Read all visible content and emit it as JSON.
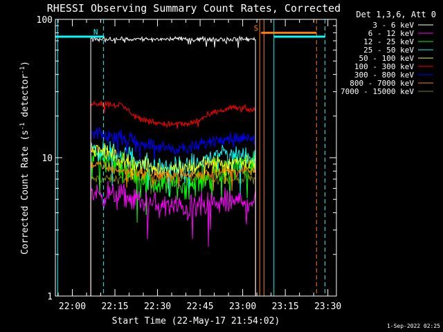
{
  "chart_data": {
    "type": "line",
    "title": "RHESSI Observing Summary Count Rates, Corrected",
    "xlabel": "Start Time (22-May-17 21:54:02)",
    "ylabel_main": "Corrected Count Rate (s",
    "ylabel_sup1": "-1",
    "ylabel_mid": " detector",
    "ylabel_sup2": "-1",
    "ylabel_end": ")",
    "y_scale": "log",
    "ylim": [
      1,
      100
    ],
    "xlim": [
      "21:54:02",
      "23:33:00"
    ],
    "x_ticks": [
      "22:00",
      "22:15",
      "22:30",
      "22:45",
      "23:00",
      "23:15",
      "23:30"
    ],
    "y_ticks": [
      "1",
      "10",
      "100"
    ],
    "data_start": "22:06:30",
    "data_end": "23:04:30",
    "legend": {
      "title": "Det 1,3,6, Att 0",
      "position": "right"
    },
    "series": [
      {
        "name": "3 - 6 keV",
        "color": "#ffffff",
        "level": 72,
        "noise": 0.025
      },
      {
        "name": "6 - 12 keV",
        "color": "#ff00ff",
        "level": 4.7,
        "noise": 0.14,
        "profile": [
          [
            0,
            5.6
          ],
          [
            0.2,
            5.2
          ],
          [
            0.4,
            4.5
          ],
          [
            0.6,
            4.3
          ],
          [
            0.8,
            4.7
          ],
          [
            1,
            4.9
          ]
        ]
      },
      {
        "name": "12 - 25 keV",
        "color": "#00ff00",
        "level": 7.5,
        "noise": 0.14,
        "profile": [
          [
            0,
            10.5
          ],
          [
            0.2,
            8.5
          ],
          [
            0.4,
            6.3
          ],
          [
            0.6,
            6.3
          ],
          [
            0.8,
            8.0
          ],
          [
            1,
            9.0
          ]
        ]
      },
      {
        "name": "25 - 50 keV",
        "color": "#00ffff",
        "level": 8.5,
        "noise": 0.12,
        "profile": [
          [
            0,
            11.5
          ],
          [
            0.2,
            10.5
          ],
          [
            0.4,
            8.5
          ],
          [
            0.6,
            8.3
          ],
          [
            0.8,
            11
          ],
          [
            1,
            10
          ]
        ]
      },
      {
        "name": "50 - 100 keV",
        "color": "#ffff00",
        "level": 8.5,
        "noise": 0.09,
        "profile": [
          [
            0,
            12
          ],
          [
            0.2,
            9.5
          ],
          [
            0.4,
            8.2
          ],
          [
            0.6,
            8.6
          ],
          [
            0.8,
            9.2
          ],
          [
            1,
            9.5
          ]
        ]
      },
      {
        "name": "100 - 300 keV",
        "color": "#ff0000",
        "level": 20,
        "noise": 0.035,
        "profile": [
          [
            0,
            25
          ],
          [
            0.18,
            24
          ],
          [
            0.3,
            19
          ],
          [
            0.45,
            17.5
          ],
          [
            0.6,
            17.5
          ],
          [
            0.75,
            21
          ],
          [
            0.85,
            23
          ],
          [
            1,
            22
          ]
        ]
      },
      {
        "name": "300 - 800 keV",
        "color": "#0000ff",
        "level": 13,
        "noise": 0.07,
        "profile": [
          [
            0,
            15
          ],
          [
            0.2,
            14
          ],
          [
            0.4,
            12
          ],
          [
            0.6,
            11.5
          ],
          [
            0.8,
            14
          ],
          [
            1,
            13.5
          ]
        ]
      },
      {
        "name": "800 - 7000 keV",
        "color": "#ff8000",
        "level": 8,
        "noise": 0.06,
        "profile": [
          [
            0,
            9
          ],
          [
            0.2,
            8
          ],
          [
            0.4,
            7.5
          ],
          [
            0.6,
            7.5
          ],
          [
            0.8,
            8
          ],
          [
            1,
            8
          ]
        ]
      },
      {
        "name": "7000 - 15000 keV",
        "color": "#808000",
        "level": 7,
        "noise": 0.05
      }
    ],
    "markers": [
      {
        "kind": "bar",
        "label": "",
        "color": "#00ffff",
        "y": 75,
        "x0": "21:54:02",
        "x1": "22:10:00"
      },
      {
        "kind": "bar",
        "label": "N",
        "color": "#00ffff",
        "y": 75,
        "x0": "22:10:00",
        "x1": "22:11:00"
      },
      {
        "kind": "bar",
        "label": "S",
        "color": "#ff8000",
        "y": 80,
        "x0": "23:06:30",
        "x1": "23:26:00"
      },
      {
        "kind": "bar",
        "label": "",
        "color": "#00ffff",
        "y": 75,
        "x0": "23:11:00",
        "x1": "23:29:00"
      }
    ],
    "vlines": [
      {
        "t": "21:54:50",
        "color": "#00ffff",
        "style": "solid"
      },
      {
        "t": "22:11:00",
        "color": "#00ffff",
        "style": "dashed"
      },
      {
        "t": "23:06:00",
        "color": "#ff8000",
        "style": "solid"
      },
      {
        "t": "23:07:30",
        "color": "#ff8000",
        "style": "solid"
      },
      {
        "t": "23:11:00",
        "color": "#00ffff",
        "style": "solid"
      },
      {
        "t": "23:26:00",
        "color": "#ff8000",
        "style": "dashed"
      },
      {
        "t": "23:29:00",
        "color": "#00ffff",
        "style": "dashed"
      }
    ],
    "timestamp": "1-Sep-2022 02:25"
  }
}
